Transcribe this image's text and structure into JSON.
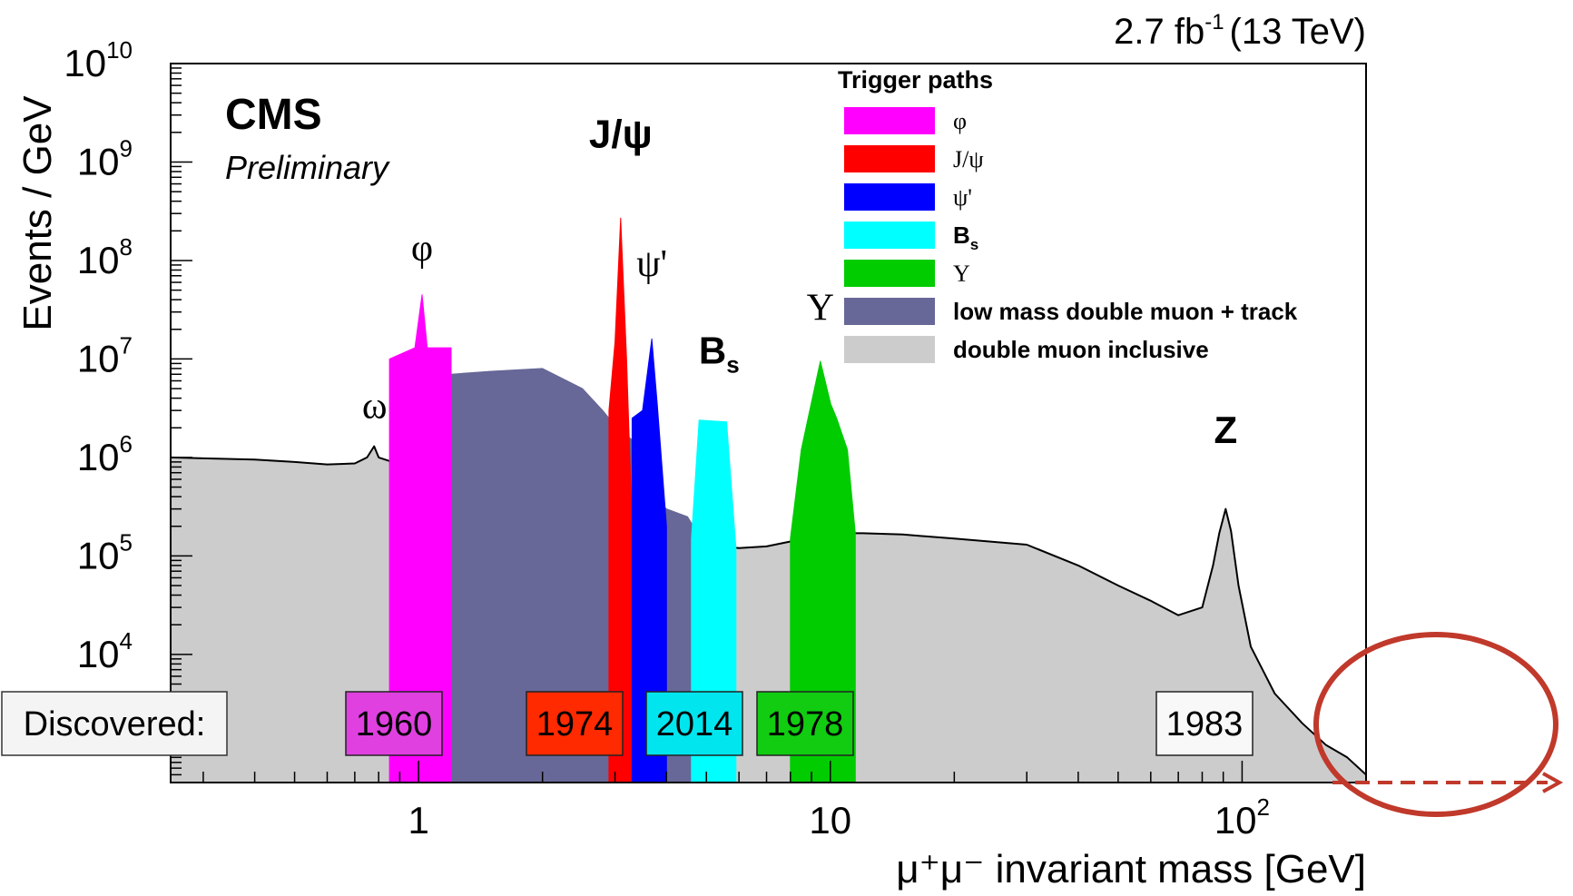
{
  "chart_data": {
    "type": "area",
    "lumi_label": "2.7 fb",
    "lumi_sup": "-1",
    "lumi_energy": "(13 TeV)",
    "experiment": "CMS",
    "status": "Preliminary",
    "ylabel": "Events / GeV",
    "xlabel": "μ⁺μ⁻ invariant mass [GeV]",
    "x_scale": "log",
    "y_scale": "log",
    "xlim": [
      0.25,
      200
    ],
    "ylim": [
      500,
      10000000000
    ],
    "y_ticks": [
      {
        "base": "10",
        "exp": "4",
        "value": 10000
      },
      {
        "base": "10",
        "exp": "5",
        "value": 100000
      },
      {
        "base": "10",
        "exp": "6",
        "value": 1000000
      },
      {
        "base": "10",
        "exp": "7",
        "value": 10000000
      },
      {
        "base": "10",
        "exp": "8",
        "value": 100000000
      },
      {
        "base": "10",
        "exp": "9",
        "value": 1000000000
      },
      {
        "base": "10",
        "exp": "10",
        "value": 10000000000
      }
    ],
    "x_ticks": [
      {
        "base": "1",
        "exp": "",
        "value": 1
      },
      {
        "base": "10",
        "exp": "",
        "value": 10
      },
      {
        "base": "10",
        "exp": "2",
        "value": 100
      }
    ],
    "legend": {
      "title": "Trigger paths",
      "placement": "top-right",
      "items": [
        {
          "label": "φ",
          "color": "#ff00ff",
          "greek": true
        },
        {
          "label": "J/ψ",
          "color": "#ff0000",
          "greek": true
        },
        {
          "label": "ψ'",
          "color": "#0000ff",
          "greek": true
        },
        {
          "label": "Bs",
          "color": "#00ffff",
          "greek": false
        },
        {
          "label": "Υ",
          "color": "#00cc00",
          "greek": true
        },
        {
          "label": "low mass double muon + track",
          "color": "#676798",
          "greek": false
        },
        {
          "label": "double muon inclusive",
          "color": "#cccccc",
          "greek": false
        }
      ]
    },
    "series": [
      {
        "name": "double muon inclusive",
        "color": "#cccccc",
        "x": [
          0.25,
          0.3,
          0.4,
          0.5,
          0.6,
          0.7,
          0.75,
          0.78,
          0.8,
          0.9,
          0.98,
          1.02,
          1.05,
          1.2,
          1.5,
          2,
          2.5,
          2.9,
          3.05,
          3.097,
          3.15,
          3.3,
          3.6,
          3.686,
          3.75,
          4,
          5,
          6,
          7,
          8,
          9,
          9.46,
          10,
          10.02,
          10.36,
          11,
          12,
          15,
          20,
          30,
          40,
          50,
          60,
          70,
          80,
          85,
          88,
          91.2,
          94,
          98,
          105,
          120,
          140,
          160,
          180,
          200
        ],
        "values": [
          1000000,
          980000,
          950000,
          900000,
          850000,
          870000,
          1000000,
          1300000,
          1000000,
          850000,
          1100000,
          1900000,
          950000,
          950000,
          900000,
          850000,
          700000,
          560000,
          1000000,
          2200000,
          1100000,
          400000,
          220000,
          900000,
          210000,
          170000,
          130000,
          120000,
          125000,
          140000,
          160000,
          180000,
          160000,
          170000,
          160000,
          170000,
          170000,
          165000,
          150000,
          130000,
          80000,
          50000,
          35000,
          25000,
          30000,
          80000,
          170000,
          300000,
          180000,
          50000,
          12000,
          4000,
          2000,
          1200,
          900,
          600
        ]
      },
      {
        "name": "low mass double muon + track",
        "color": "#676798",
        "x": [
          1.0,
          1.2,
          1.5,
          2,
          2.5,
          2.8,
          2.9,
          3.3,
          3.5,
          4,
          4.5,
          5.0
        ],
        "values": [
          6500000,
          7000000,
          7500000,
          8000000,
          5000000,
          3000000,
          2500000,
          1500000,
          500000,
          300000,
          250000,
          120000
        ]
      },
      {
        "name": "φ",
        "color": "#ff00ff",
        "x": [
          0.85,
          0.98,
          1.02,
          1.05,
          1.2
        ],
        "values": [
          10000000,
          13000000,
          45000000,
          13000000,
          13000000
        ]
      },
      {
        "name": "J/ψ",
        "color": "#ff0000",
        "x": [
          2.9,
          3.0,
          3.097,
          3.2,
          3.3
        ],
        "values": [
          3000000,
          15000000,
          270000000,
          10000000,
          200000
        ]
      },
      {
        "name": "ψ'",
        "color": "#0000ff",
        "x": [
          3.3,
          3.5,
          3.686,
          3.8,
          4.0
        ],
        "values": [
          2500000,
          3000000,
          16000000,
          3500000,
          200000
        ]
      },
      {
        "name": "Bs",
        "color": "#00ffff",
        "x": [
          4.6,
          4.8,
          5.6,
          5.9
        ],
        "values": [
          150000,
          2400000,
          2300000,
          120000
        ]
      },
      {
        "name": "Υ",
        "color": "#00cc00",
        "x": [
          8.0,
          8.5,
          9.46,
          10.02,
          10.36,
          11.0,
          11.5
        ],
        "values": [
          150000,
          1200000,
          9500000,
          3500000,
          2500000,
          1200000,
          170000
        ]
      }
    ],
    "annotations": [
      {
        "text": "ω",
        "x": 0.782,
        "y": 2500000
      },
      {
        "text": "φ",
        "x": 1.02,
        "y": 100000000
      },
      {
        "text": "J/ψ",
        "x": 3.097,
        "y": 1400000000
      },
      {
        "text": "ψ'",
        "x": 3.686,
        "y": 70000000
      },
      {
        "text": "Bs",
        "x": 5.37,
        "y": 9000000
      },
      {
        "text": "Υ",
        "x": 9.46,
        "y": 25000000
      },
      {
        "text": "Z",
        "x": 91.2,
        "y": 1400000
      }
    ],
    "discovered": {
      "label": "Discovered:",
      "boxes": [
        {
          "year": "1960",
          "color": "#e040e0"
        },
        {
          "year": "1974",
          "color": "#ff2a00"
        },
        {
          "year": "2014",
          "color": "#00e5ee"
        },
        {
          "year": "1978",
          "color": "#11cc11"
        },
        {
          "year": "1983",
          "color": "#f8f8f8"
        }
      ]
    }
  }
}
